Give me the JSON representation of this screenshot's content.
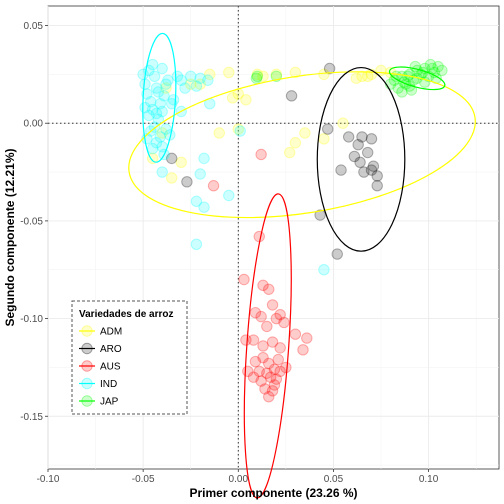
{
  "chart_data": {
    "type": "scatter",
    "xlabel": "Primer componente (23.26 %)",
    "ylabel": "Segundo componente (12.21%)",
    "xlim": [
      -0.1,
      0.137
    ],
    "ylim": [
      -0.177,
      0.06
    ],
    "x_ticks": [
      -0.1,
      -0.05,
      0.0,
      0.05,
      0.1
    ],
    "x_tick_labels": [
      "-0.10",
      "-0.05",
      "0.00",
      "0.05",
      "0.10"
    ],
    "y_ticks": [
      0.05,
      0.0,
      -0.05,
      -0.1,
      -0.15
    ],
    "y_tick_labels": [
      "0.05",
      "0.00",
      "-0.05",
      "-0.10",
      "-0.15"
    ],
    "reference_lines": {
      "x": 0,
      "y": 0,
      "style": "dotted"
    },
    "grid": true,
    "legend": {
      "title": "Variedades de arroz",
      "position": "bottom-left"
    },
    "series": [
      {
        "name": "ADM",
        "color": "#ffff00",
        "points": [
          [
            -0.015,
            0.025
          ],
          [
            -0.005,
            0.026
          ],
          [
            0.01,
            0.025
          ],
          [
            0.02,
            0.025
          ],
          [
            0.03,
            0.026
          ],
          [
            0.045,
            0.025
          ],
          [
            0.07,
            0.025
          ],
          [
            0.065,
            0.024
          ],
          [
            0.075,
            0.027
          ],
          [
            0.08,
            0.026
          ],
          [
            0.062,
            0.023
          ],
          [
            0.068,
            0.024
          ],
          [
            0.0,
            0.015
          ],
          [
            0.004,
            0.012
          ],
          [
            -0.003,
            0.013
          ],
          [
            -0.03,
            -0.02
          ],
          [
            -0.038,
            0.018
          ],
          [
            -0.045,
            -0.018
          ],
          [
            -0.035,
            -0.028
          ],
          [
            0.027,
            -0.015
          ],
          [
            0.03,
            -0.01
          ],
          [
            0.045,
            -0.008
          ],
          [
            0.055,
            0.0
          ],
          [
            0.013,
            0.024
          ],
          [
            -0.02,
            0.02
          ],
          [
            -0.025,
            0.02
          ],
          [
            -0.04,
            -0.005
          ],
          [
            0.035,
            -0.005
          ],
          [
            0.0,
            -0.003
          ],
          [
            -0.01,
            -0.005
          ]
        ],
        "ellipse": {
          "cx": 0.0335,
          "cy": -0.011,
          "rx": 0.092,
          "ry": 0.035,
          "angle": 9
        }
      },
      {
        "name": "ARO",
        "color": "#000000",
        "points": [
          [
            0.048,
            0.028
          ],
          [
            0.028,
            0.014
          ],
          [
            0.047,
            -0.003
          ],
          [
            0.058,
            -0.007
          ],
          [
            0.065,
            -0.007
          ],
          [
            0.063,
            -0.011
          ],
          [
            0.07,
            -0.008
          ],
          [
            0.068,
            -0.015
          ],
          [
            0.071,
            -0.022
          ],
          [
            0.061,
            -0.017
          ],
          [
            0.054,
            -0.024
          ],
          [
            0.066,
            -0.025
          ],
          [
            0.073,
            -0.027
          ],
          [
            0.073,
            -0.032
          ],
          [
            0.07,
            -0.024
          ],
          [
            0.043,
            -0.047
          ],
          [
            0.052,
            -0.067
          ],
          [
            -0.035,
            -0.018
          ],
          [
            -0.027,
            -0.03
          ],
          [
            0.064,
            -0.02
          ]
        ],
        "ellipse": {
          "cx": 0.0645,
          "cy": -0.0185,
          "rx": 0.023,
          "ry": 0.047,
          "angle": 0
        }
      },
      {
        "name": "AUS",
        "color": "#ff0000",
        "points": [
          [
            -0.013,
            -0.032
          ],
          [
            0.012,
            -0.016
          ],
          [
            0.011,
            -0.058
          ],
          [
            0.003,
            -0.08
          ],
          [
            0.013,
            -0.083
          ],
          [
            0.016,
            -0.085
          ],
          [
            0.018,
            -0.093
          ],
          [
            0.022,
            -0.098
          ],
          [
            0.012,
            -0.099
          ],
          [
            0.009,
            -0.097
          ],
          [
            0.004,
            -0.111
          ],
          [
            0.008,
            -0.111
          ],
          [
            0.013,
            -0.114
          ],
          [
            0.018,
            -0.112
          ],
          [
            0.024,
            -0.102
          ],
          [
            0.036,
            -0.11
          ],
          [
            0.034,
            -0.116
          ],
          [
            0.022,
            -0.115
          ],
          [
            0.013,
            -0.12
          ],
          [
            0.016,
            -0.123
          ],
          [
            0.019,
            -0.126
          ],
          [
            0.021,
            -0.121
          ],
          [
            0.011,
            -0.127
          ],
          [
            0.015,
            -0.128
          ],
          [
            0.017,
            -0.13
          ],
          [
            0.012,
            -0.132
          ],
          [
            0.02,
            -0.131
          ],
          [
            0.022,
            -0.127
          ],
          [
            0.014,
            -0.136
          ],
          [
            0.018,
            -0.137
          ],
          [
            0.016,
            -0.14
          ],
          [
            0.008,
            -0.13
          ],
          [
            0.005,
            -0.127
          ],
          [
            0.025,
            -0.125
          ],
          [
            0.019,
            -0.134
          ],
          [
            0.009,
            -0.122
          ],
          [
            0.03,
            -0.108
          ],
          [
            0.015,
            -0.104
          ],
          [
            0.02,
            -0.1
          ]
        ],
        "ellipse": {
          "cx": 0.0155,
          "cy": -0.114,
          "rx": 0.011,
          "ry": 0.078,
          "angle": -4
        }
      },
      {
        "name": "IND",
        "color": "#00ffff",
        "points": [
          [
            -0.05,
            0.025
          ],
          [
            -0.045,
            0.03
          ],
          [
            -0.04,
            0.028
          ],
          [
            -0.037,
            0.022
          ],
          [
            -0.043,
            0.018
          ],
          [
            -0.048,
            0.015
          ],
          [
            -0.046,
            0.011
          ],
          [
            -0.041,
            0.01
          ],
          [
            -0.039,
            0.014
          ],
          [
            -0.045,
            0.007
          ],
          [
            -0.047,
            0.004
          ],
          [
            -0.042,
            0.002
          ],
          [
            -0.04,
            0.006
          ],
          [
            -0.044,
            -0.002
          ],
          [
            -0.046,
            -0.004
          ],
          [
            -0.041,
            -0.007
          ],
          [
            -0.038,
            -0.003
          ],
          [
            -0.043,
            -0.01
          ],
          [
            -0.045,
            -0.013
          ],
          [
            -0.04,
            -0.012
          ],
          [
            -0.036,
            -0.006
          ],
          [
            -0.035,
            0.01
          ],
          [
            -0.038,
            0.02
          ],
          [
            -0.032,
            0.024
          ],
          [
            -0.03,
            0.022
          ],
          [
            -0.025,
            0.024
          ],
          [
            -0.022,
            0.019
          ],
          [
            -0.028,
            0.018
          ],
          [
            -0.02,
            0.023
          ],
          [
            -0.016,
            0.022
          ],
          [
            -0.015,
            0.01
          ],
          [
            -0.034,
            0.012
          ],
          [
            -0.03,
            0.006
          ],
          [
            -0.018,
            -0.018
          ],
          [
            -0.02,
            -0.026
          ],
          [
            -0.022,
            -0.04
          ],
          [
            -0.018,
            -0.043
          ],
          [
            -0.022,
            -0.062
          ],
          [
            -0.005,
            -0.037
          ],
          [
            0.045,
            -0.075
          ],
          [
            -0.04,
            -0.025
          ],
          [
            -0.049,
            0.02
          ],
          [
            -0.047,
            0.027
          ],
          [
            -0.044,
            0.024
          ],
          [
            -0.042,
            0.016
          ],
          [
            -0.049,
            0.008
          ],
          [
            -0.043,
            0.005
          ],
          [
            -0.048,
            -0.008
          ],
          [
            -0.039,
            -0.016
          ],
          [
            0.001,
            -0.004
          ]
        ],
        "ellipse": {
          "cx": -0.0415,
          "cy": 0.013,
          "rx": 0.0085,
          "ry": 0.033,
          "angle": -3
        }
      },
      {
        "name": "JAP",
        "color": "#00ff00",
        "points": [
          [
            0.082,
            0.022
          ],
          [
            0.086,
            0.024
          ],
          [
            0.09,
            0.025
          ],
          [
            0.094,
            0.027
          ],
          [
            0.098,
            0.028
          ],
          [
            0.102,
            0.028
          ],
          [
            0.105,
            0.029
          ],
          [
            0.096,
            0.025
          ],
          [
            0.092,
            0.022
          ],
          [
            0.088,
            0.02
          ],
          [
            0.084,
            0.018
          ],
          [
            0.086,
            0.016
          ],
          [
            0.09,
            0.019
          ],
          [
            0.1,
            0.024
          ],
          [
            0.103,
            0.026
          ],
          [
            0.098,
            0.021
          ],
          [
            0.094,
            0.023
          ],
          [
            0.08,
            0.02
          ],
          [
            0.091,
            0.017
          ],
          [
            0.087,
            0.021
          ],
          [
            0.101,
            0.03
          ],
          [
            0.107,
            0.027
          ],
          [
            0.097,
            0.026
          ],
          [
            0.093,
            0.029
          ],
          [
            0.089,
            0.024
          ],
          [
            0.01,
            0.024
          ],
          [
            0.0095,
            0.023
          ],
          [
            0.02,
            0.024
          ],
          [
            0.083,
            0.024
          ],
          [
            0.104,
            0.023
          ]
        ],
        "ellipse": {
          "cx": 0.094,
          "cy": 0.023,
          "rx": 0.015,
          "ry": 0.0045,
          "angle": -15
        }
      }
    ]
  }
}
